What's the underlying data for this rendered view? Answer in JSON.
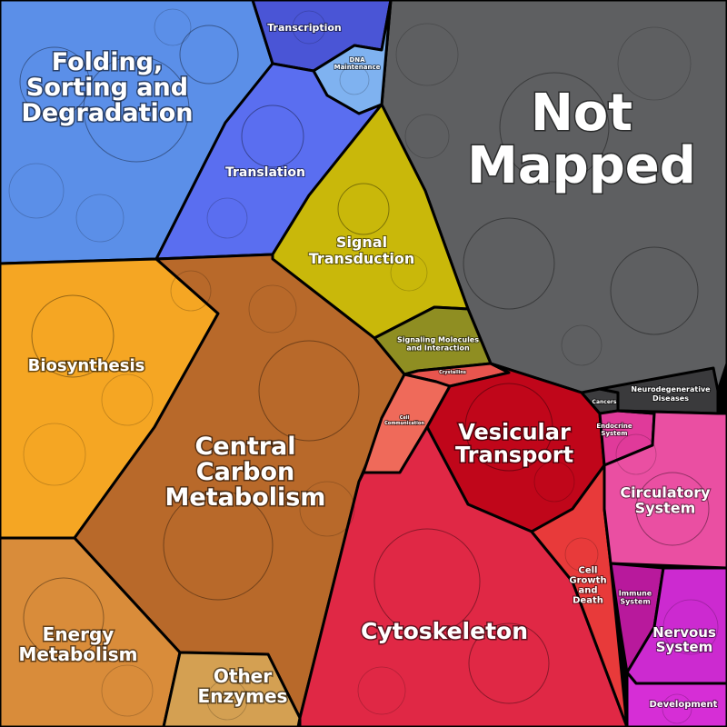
{
  "title": "",
  "regions": [
    {
      "key": "folding",
      "label": [
        "Folding,",
        "Sorting and",
        "Degradation"
      ],
      "color": "#5b8fe8"
    },
    {
      "key": "transcription",
      "label": [
        "Transcription"
      ],
      "color": "#4a55d6"
    },
    {
      "key": "dna",
      "label": [
        "DNA",
        "Maintenance"
      ],
      "color": "#7fb2f0"
    },
    {
      "key": "translation",
      "label": [
        "Translation"
      ],
      "color": "#5a6ef0"
    },
    {
      "key": "notmapped",
      "label": [
        "Not",
        "Mapped"
      ],
      "color": "#5e5f61"
    },
    {
      "key": "signal",
      "label": [
        "Signal",
        "Transduction"
      ],
      "color": "#c9b80a"
    },
    {
      "key": "signaling",
      "label": [
        "Signaling Molecules",
        "and Interaction"
      ],
      "color": "#8f8e22"
    },
    {
      "key": "biosynthesis",
      "label": [
        "Biosynthesis"
      ],
      "color": "#f5a623"
    },
    {
      "key": "central",
      "label": [
        "Central",
        "Carbon",
        "Metabolism"
      ],
      "color": "#b8692a"
    },
    {
      "key": "energy",
      "label": [
        "Energy",
        "Metabolism"
      ],
      "color": "#d98c3a"
    },
    {
      "key": "other",
      "label": [
        "Other",
        "Enzymes"
      ],
      "color": "#d4a052"
    },
    {
      "key": "crystallins",
      "label": [
        "Crystallins"
      ],
      "color": "#e8554e"
    },
    {
      "key": "cellcomm",
      "label": [
        "Cell",
        "Communication"
      ],
      "color": "#ef6a5a"
    },
    {
      "key": "vesicular",
      "label": [
        "Vesicular",
        "Transport"
      ],
      "color": "#c0061a"
    },
    {
      "key": "cytoskeleton",
      "label": [
        "Cytoskeleton"
      ],
      "color": "#e02845"
    },
    {
      "key": "cellgrowth",
      "label": [
        "Cell",
        "Growth",
        "and",
        "Death"
      ],
      "color": "#e83a3a"
    },
    {
      "key": "cancers",
      "label": [
        "Cancers"
      ],
      "color": "#3c3c3e"
    },
    {
      "key": "neuro",
      "label": [
        "Neurodegenerative",
        "Diseases"
      ],
      "color": "#3a3a3c"
    },
    {
      "key": "endocrine",
      "label": [
        "Endocrine",
        "System"
      ],
      "color": "#e03a9a"
    },
    {
      "key": "circulatory",
      "label": [
        "Circulatory",
        "System"
      ],
      "color": "#ea4fa2"
    },
    {
      "key": "immune",
      "label": [
        "Immune",
        "System"
      ],
      "color": "#b8199c"
    },
    {
      "key": "nervous",
      "label": [
        "Nervous",
        "System"
      ],
      "color": "#cc2ad0"
    },
    {
      "key": "development",
      "label": [
        "Development"
      ],
      "color": "#d62ed6"
    }
  ]
}
